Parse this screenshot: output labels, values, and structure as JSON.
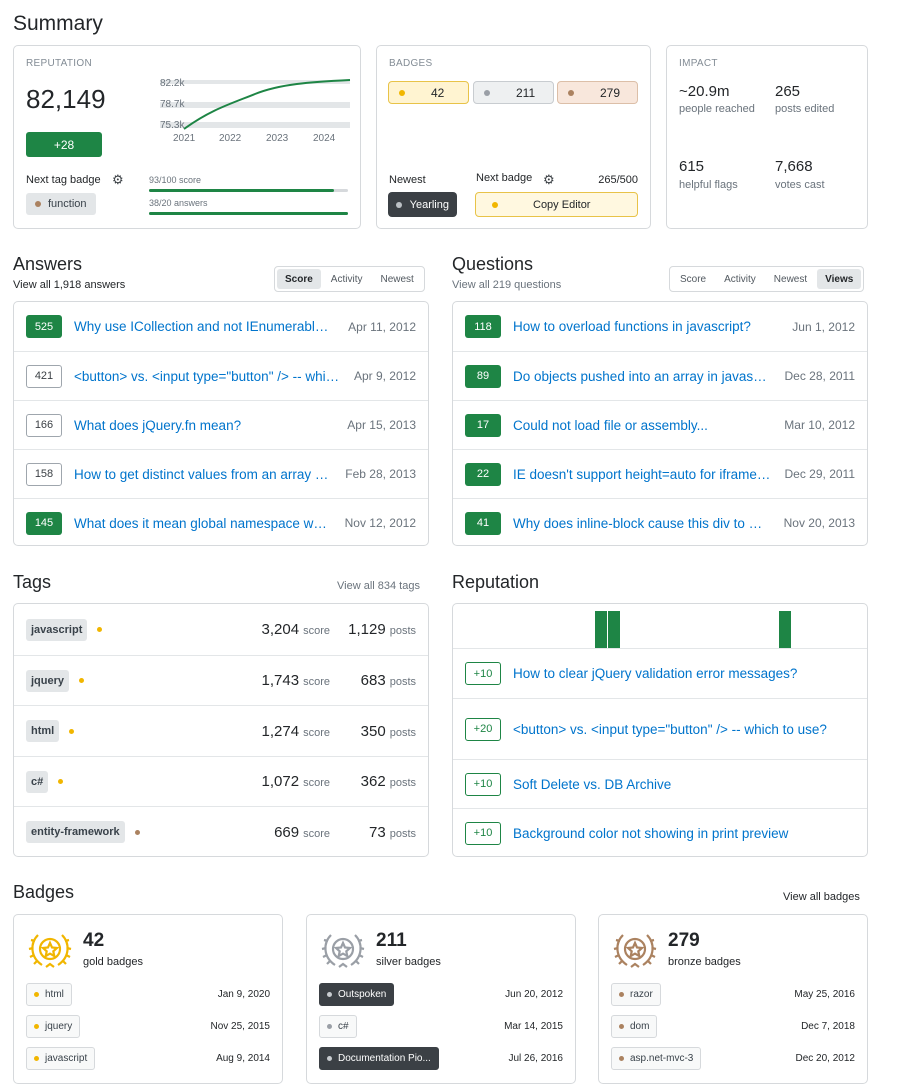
{
  "summary": {
    "title": "Summary",
    "reputation": {
      "caption": "REPUTATION",
      "value": "82,149",
      "delta": "+28",
      "chart_ticks_y": [
        "82.2k",
        "78.7k",
        "75.3k"
      ],
      "chart_ticks_x": [
        "2021",
        "2022",
        "2023",
        "2024"
      ],
      "next_tag_label": "Next tag badge",
      "next_tag_name": "function",
      "progress": [
        {
          "label": "93/100 score",
          "fraction": 0.93
        },
        {
          "label": "38/20 answers",
          "fraction": 1.0
        }
      ]
    },
    "badges": {
      "caption": "BADGES",
      "gold": "42",
      "silver": "211",
      "bronze": "279",
      "newest_label": "Newest",
      "newest_badge": "Yearling",
      "next_label": "Next badge",
      "next_progress": "265/500",
      "next_badge": "Copy Editor"
    },
    "impact": {
      "caption": "IMPACT",
      "stats": [
        {
          "value": "~20.9m",
          "label": "people reached"
        },
        {
          "value": "265",
          "label": "posts edited"
        },
        {
          "value": "615",
          "label": "helpful flags"
        },
        {
          "value": "7,668",
          "label": "votes cast"
        }
      ]
    }
  },
  "answers": {
    "title": "Answers",
    "subtitle": "View all 1,918 answers",
    "tabs": [
      "Score",
      "Activity",
      "Newest"
    ],
    "items": [
      {
        "score": "525",
        "accepted": true,
        "title": "Why use ICollection and not IEnumerable or List<T> on many-many/one-many relationships?",
        "date": "Apr 11, 2012"
      },
      {
        "score": "421",
        "accepted": false,
        "title": "<button> vs. <input type=\"button\" /> -- which to use?",
        "date": "Apr 9, 2012"
      },
      {
        "score": "166",
        "accepted": false,
        "title": "What does jQuery.fn mean?",
        "date": "Apr 15, 2013"
      },
      {
        "score": "158",
        "accepted": false,
        "title": "How to get distinct values from an array of objects in JavaScript?",
        "date": "Feb 28, 2013"
      },
      {
        "score": "145",
        "accepted": true,
        "title": "What does it mean global namespace would be polluted?",
        "date": "Nov 12, 2012"
      }
    ]
  },
  "questions": {
    "title": "Questions",
    "subtitle": "View all 219 questions",
    "tabs": [
      "Score",
      "Activity",
      "Newest",
      "Views"
    ],
    "items": [
      {
        "score": "118",
        "title": "How to overload functions in javascript?",
        "date": "Jun 1, 2012"
      },
      {
        "score": "89",
        "title": "Do objects pushed into an array in javascript deep or shallow copy?",
        "date": "Dec 28, 2011"
      },
      {
        "score": "17",
        "title": "Could not load file or assembly...",
        "date": "Mar 10, 2012"
      },
      {
        "score": "22",
        "title": "IE doesn't support height=auto for iframes?",
        "date": "Dec 29, 2011"
      },
      {
        "score": "41",
        "title": "Why does inline-block cause this div to have height?",
        "date": "Nov 20, 2013"
      }
    ]
  },
  "tags": {
    "title": "Tags",
    "view_all": "View all 834 tags",
    "score_unit": "score",
    "posts_unit": "posts",
    "items": [
      {
        "name": "javascript",
        "badge": "gold",
        "score": "3,204",
        "posts": "1,129"
      },
      {
        "name": "jquery",
        "badge": "gold",
        "score": "1,743",
        "posts": "683"
      },
      {
        "name": "html",
        "badge": "gold",
        "score": "1,274",
        "posts": "350"
      },
      {
        "name": "c#",
        "badge": "gold",
        "score": "1,072",
        "posts": "362"
      },
      {
        "name": "entity-framework",
        "badge": "bronze",
        "score": "669",
        "posts": "73"
      }
    ]
  },
  "reputation": {
    "title": "Reputation",
    "items": [
      {
        "delta": "+10",
        "title": "How to clear jQuery validation error messages?"
      },
      {
        "delta": "+20",
        "title": "<button> vs. <input type=\"button\" /> -- which to use?"
      },
      {
        "delta": "+10",
        "title": "Soft Delete vs. DB Archive"
      },
      {
        "delta": "+10",
        "title": "Background color not showing in print preview"
      }
    ]
  },
  "badges": {
    "title": "Badges",
    "view_all": "View all badges",
    "groups": [
      {
        "count": "42",
        "label": "gold badges",
        "color": "#f1b600",
        "items": [
          {
            "name": "html",
            "date": "Jan 9, 2020",
            "dark": false
          },
          {
            "name": "jquery",
            "date": "Nov 25, 2015",
            "dark": false
          },
          {
            "name": "javascript",
            "date": "Aug 9, 2014",
            "dark": false
          }
        ]
      },
      {
        "count": "211",
        "label": "silver badges",
        "color": "#9a9fa6",
        "items": [
          {
            "name": "Outspoken",
            "date": "Jun 20, 2012",
            "dark": true
          },
          {
            "name": "c#",
            "date": "Mar 14, 2015",
            "dark": false
          },
          {
            "name": "Documentation Pio...",
            "date": "Jul 26, 2016",
            "dark": true
          }
        ]
      },
      {
        "count": "279",
        "label": "bronze badges",
        "color": "#ab8260",
        "items": [
          {
            "name": "razor",
            "date": "May 25, 2016",
            "dark": false
          },
          {
            "name": "dom",
            "date": "Dec 7, 2018",
            "dark": false
          },
          {
            "name": "asp.net-mvc-3",
            "date": "Dec 20, 2012",
            "dark": false
          }
        ]
      }
    ]
  },
  "colors": {
    "accent": "#1e8545",
    "link": "#0074cc",
    "gold": "#f1b600",
    "silver": "#9a9fa6",
    "bronze": "#ab8260"
  }
}
